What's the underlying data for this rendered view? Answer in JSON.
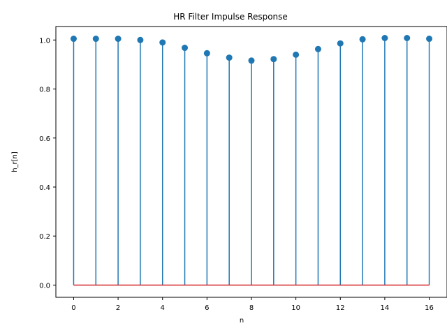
{
  "chart_data": {
    "type": "stem",
    "title": "HR Filter Impulse Response",
    "xlabel": "n",
    "ylabel": "h_r[n]",
    "x": [
      0,
      1,
      2,
      3,
      4,
      5,
      6,
      7,
      8,
      9,
      10,
      11,
      12,
      13,
      14,
      15,
      16
    ],
    "values": [
      1.005,
      1.005,
      1.005,
      1.0,
      0.99,
      0.968,
      0.946,
      0.928,
      0.916,
      0.922,
      0.94,
      0.963,
      0.986,
      1.003,
      1.008,
      1.008,
      1.005
    ],
    "xlim": [
      -0.8,
      16.8
    ],
    "ylim": [
      -0.05,
      1.055
    ],
    "xticks": [
      "0",
      "2",
      "4",
      "6",
      "8",
      "10",
      "12",
      "14",
      "16"
    ],
    "yticks": [
      "0.0",
      "0.2",
      "0.4",
      "0.6",
      "0.8",
      "1.0"
    ],
    "grid": false,
    "colors": {
      "stem": "#1f77b4",
      "baseline": "#d62728"
    }
  }
}
